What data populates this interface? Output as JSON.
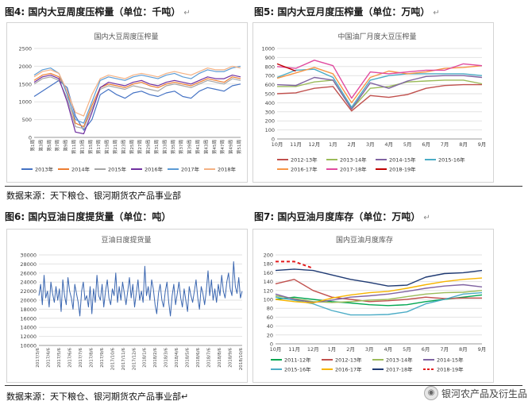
{
  "fig4": {
    "title": "图4: 国内大豆周度压榨量（单位：千吨）"
  },
  "fig5": {
    "title": "图5: 国内大豆月度压榨量（单位：万吨）"
  },
  "fig6": {
    "title": "图6: 国内豆油日度提货量（单位：吨）"
  },
  "fig7": {
    "title": "图7: 国内豆油月度库存（单位：万吨）"
  },
  "para_mark": "↵",
  "source_top": "数据来源：天下粮仓、银河期货农产品事业部",
  "source_bottom": "数据来源：天下粮仓、银河期货农产品事业部↵",
  "watermark": "银河农产品及衍生品",
  "chart_data": [
    {
      "id": "weekly_crush",
      "type": "line",
      "title": "国内大豆周度压榨量",
      "ylim": [
        0,
        2500
      ],
      "yticks": [
        0,
        500,
        1000,
        1500,
        2000,
        2500
      ],
      "categories": [
        "第1周",
        "第3周",
        "第5周",
        "第7周",
        "第9周",
        "第11周",
        "第13周",
        "第15周",
        "第17周",
        "第19周",
        "第21周",
        "第23周",
        "第25周",
        "第27周",
        "第29周",
        "第31周",
        "第33周",
        "第35周",
        "第37周",
        "第39周",
        "第41周",
        "第43周",
        "第45周",
        "第47周",
        "第49周",
        "第51周"
      ],
      "series": [
        {
          "name": "2013年",
          "color": "#4472c4",
          "values": [
            1150,
            1300,
            1450,
            1600,
            1400,
            600,
            200,
            500,
            1200,
            1350,
            1200,
            1100,
            1250,
            1300,
            1200,
            1150,
            1250,
            1300,
            1150,
            1100,
            1300,
            1400,
            1350,
            1300,
            1450,
            1500
          ]
        },
        {
          "name": "2014年",
          "color": "#ed7d31",
          "values": [
            1600,
            1750,
            1800,
            1700,
            1300,
            400,
            300,
            900,
            1400,
            1500,
            1450,
            1400,
            1500,
            1550,
            1450,
            1400,
            1500,
            1550,
            1500,
            1450,
            1550,
            1650,
            1600,
            1550,
            1700,
            1650
          ]
        },
        {
          "name": "2015年",
          "color": "#a5a5a5",
          "values": [
            1500,
            1650,
            1700,
            1600,
            1100,
            300,
            250,
            800,
            1350,
            1450,
            1400,
            1350,
            1450,
            1400,
            1350,
            1300,
            1450,
            1500,
            1450,
            1400,
            1500,
            1600,
            1550,
            1500,
            1650,
            1600
          ]
        },
        {
          "name": "2016年",
          "color": "#7030a0",
          "values": [
            1550,
            1700,
            1750,
            1650,
            1000,
            150,
            100,
            700,
            1400,
            1550,
            1500,
            1450,
            1550,
            1600,
            1500,
            1450,
            1550,
            1600,
            1550,
            1500,
            1600,
            1700,
            1650,
            1650,
            1750,
            1700
          ]
        },
        {
          "name": "2017年",
          "color": "#5b9bd5",
          "values": [
            1750,
            1900,
            1950,
            1800,
            1200,
            500,
            400,
            1000,
            1600,
            1700,
            1650,
            1600,
            1700,
            1750,
            1700,
            1650,
            1750,
            1800,
            1700,
            1650,
            1800,
            1900,
            1850,
            1850,
            1950,
            2000
          ]
        },
        {
          "name": "2018年",
          "color": "#f4b183",
          "values": [
            1700,
            1850,
            1900,
            1800,
            1300,
            700,
            600,
            1200,
            1650,
            1750,
            1700,
            1650,
            1750,
            1800,
            1750,
            1700,
            1800,
            1850,
            1800,
            1750,
            1850,
            1950,
            1900,
            1900,
            2000,
            1950
          ]
        }
      ]
    },
    {
      "id": "monthly_crush",
      "type": "line",
      "title": "中国油厂月度大豆压榨量",
      "ylim": [
        0,
        1000
      ],
      "yticks": [
        0,
        100,
        200,
        300,
        400,
        500,
        600,
        700,
        800,
        900,
        1000
      ],
      "categories": [
        "10月",
        "11月",
        "12月",
        "1月",
        "2月",
        "3月",
        "4月",
        "5月",
        "6月",
        "7月",
        "8月",
        "9月"
      ],
      "series": [
        {
          "name": "2012-13年",
          "color": "#c0504d",
          "values": [
            500,
            510,
            560,
            580,
            310,
            480,
            460,
            490,
            560,
            590,
            600,
            600
          ]
        },
        {
          "name": "2013-14年",
          "color": "#9bbb59",
          "values": [
            580,
            580,
            630,
            650,
            330,
            560,
            580,
            630,
            640,
            650,
            650,
            610
          ]
        },
        {
          "name": "2014-15年",
          "color": "#8064a2",
          "values": [
            600,
            590,
            680,
            650,
            330,
            620,
            560,
            640,
            690,
            700,
            700,
            680
          ]
        },
        {
          "name": "2015-16年",
          "color": "#4bacc6",
          "values": [
            680,
            760,
            770,
            680,
            350,
            650,
            700,
            720,
            720,
            720,
            720,
            700
          ]
        },
        {
          "name": "2016-17年",
          "color": "#f79646",
          "values": [
            670,
            730,
            790,
            720,
            400,
            680,
            750,
            720,
            740,
            780,
            790,
            810
          ]
        },
        {
          "name": "2017-18年",
          "color": "#e04a9f",
          "values": [
            800,
            780,
            870,
            810,
            450,
            740,
            720,
            740,
            760,
            760,
            830,
            810
          ]
        },
        {
          "name": "2018-19年",
          "color": "#c00000",
          "values": [
            830,
            750,
            null,
            null,
            null,
            null,
            null,
            null,
            null,
            null,
            null,
            null
          ]
        }
      ]
    },
    {
      "id": "daily_pickup",
      "type": "line",
      "title": "豆油日度提货量",
      "ylim": [
        10000,
        30000
      ],
      "yticks": [
        10000,
        12000,
        14000,
        16000,
        18000,
        20000,
        22000,
        24000,
        26000,
        28000,
        30000
      ],
      "xticks": [
        "2017/3/6",
        "2017/4/6",
        "2017/5/6",
        "2017/6/6",
        "2017/7/6",
        "2017/8/6",
        "2017/9/6",
        "2017/10/6",
        "2017/11/6",
        "2017/12/6",
        "2018/1/6",
        "2018/2/6",
        "2018/3/6",
        "2018/4/6",
        "2018/5/6",
        "2018/6/6",
        "2018/7/6",
        "2018/8/6",
        "2018/9/6",
        "2018/10/6"
      ],
      "series": [
        {
          "name": "豆油日度提货量",
          "color": "#3a66b0",
          "values": [
            21000,
            23500,
            19000,
            25500,
            20500,
            22000,
            18500,
            24000,
            21500,
            19500,
            23000,
            20000,
            22500,
            17500,
            24500,
            21000,
            19000,
            25000,
            22000,
            20500,
            18000,
            23500,
            21500,
            19500,
            16500,
            22000,
            24000,
            20000,
            21000,
            18500,
            23000,
            17000,
            22500,
            19500,
            25500,
            21000,
            20000,
            23500,
            18500,
            22000,
            24500,
            20500,
            19000,
            22500,
            21000,
            26000,
            19500,
            23000,
            20000,
            24000,
            21500,
            19000,
            22000,
            25000,
            20500,
            23500,
            18500,
            21500,
            24500,
            20000,
            22000,
            19500,
            27500,
            21000,
            23000,
            20000,
            24500,
            22500,
            19000,
            17000,
            21500,
            23500,
            20000,
            18500,
            22000,
            24000,
            19500,
            16500,
            21000,
            23500,
            19000,
            21500,
            24000,
            20500,
            18500,
            22500,
            20000,
            17500,
            23000,
            21000,
            19500,
            22000,
            24500,
            20500,
            18000,
            23000,
            21500,
            19000,
            22000,
            26500,
            21000,
            24500,
            20000,
            22500,
            19500,
            23500,
            21000,
            25500,
            22000,
            20500,
            24000,
            26000,
            22500,
            21000,
            28500,
            23000,
            21500,
            25000,
            20500,
            22000
          ]
        }
      ]
    },
    {
      "id": "monthly_stock",
      "type": "line",
      "title": "国内豆油月度库存",
      "ylim": [
        0,
        200
      ],
      "yticks": [
        0,
        20,
        40,
        60,
        80,
        100,
        120,
        140,
        160,
        180,
        200
      ],
      "categories": [
        "10月",
        "11月",
        "12月",
        "1月",
        "2月",
        "3月",
        "4月",
        "5月",
        "6月",
        "7月",
        "8月",
        "9月"
      ],
      "series": [
        {
          "name": "2011-12年",
          "color": "#00a651",
          "values": [
            100,
            105,
            100,
            95,
            92,
            88,
            86,
            88,
            95,
            100,
            105,
            110
          ]
        },
        {
          "name": "2012-13年",
          "color": "#c0504d",
          "values": [
            135,
            145,
            120,
            105,
            100,
            95,
            97,
            100,
            105,
            102,
            103,
            103
          ]
        },
        {
          "name": "2013-14年",
          "color": "#9bbb59",
          "values": [
            108,
            102,
            95,
            93,
            95,
            98,
            100,
            106,
            112,
            115,
            116,
            120
          ]
        },
        {
          "name": "2014-15年",
          "color": "#8064a2",
          "values": [
            112,
            100,
            93,
            98,
            105,
            108,
            112,
            118,
            125,
            130,
            133,
            128
          ]
        },
        {
          "name": "2015-16年",
          "color": "#4bacc6",
          "values": [
            105,
            98,
            90,
            75,
            65,
            65,
            66,
            72,
            90,
            100,
            112,
            115
          ]
        },
        {
          "name": "2016-17年",
          "color": "#f7b500",
          "values": [
            100,
            95,
            92,
            103,
            110,
            115,
            118,
            125,
            133,
            140,
            145,
            148
          ]
        },
        {
          "name": "2017-18年",
          "color": "#1f3a73",
          "values": [
            165,
            168,
            165,
            155,
            145,
            138,
            130,
            132,
            150,
            158,
            160,
            165
          ]
        },
        {
          "name": "2018-19年",
          "color": "#e31a1c",
          "dashed": true,
          "values": [
            185,
            185,
            170,
            null,
            null,
            null,
            null,
            null,
            null,
            null,
            null,
            null
          ]
        }
      ]
    }
  ]
}
